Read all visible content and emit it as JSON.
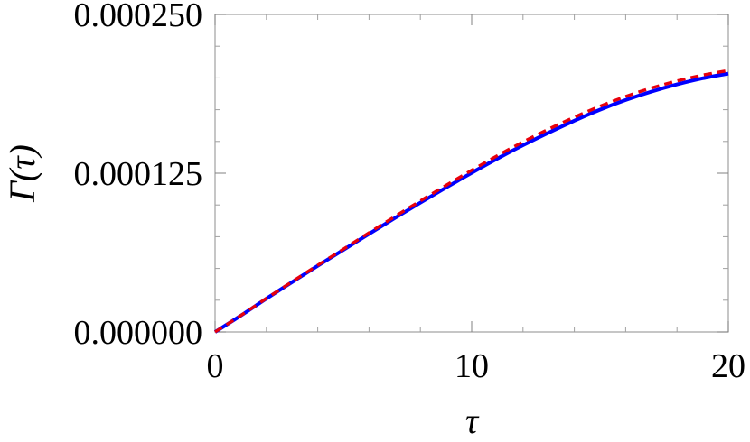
{
  "chart_data": {
    "type": "line",
    "xlabel": "τ",
    "ylabel": "Γ(τ)",
    "xlim": [
      0,
      20
    ],
    "ylim": [
      0,
      0.00025
    ],
    "x_ticks": [
      "0",
      "10",
      "20"
    ],
    "y_ticks": [
      "0.000000",
      "0.000125",
      "0.000250"
    ],
    "x_tick_values": [
      0,
      10,
      20
    ],
    "y_tick_values": [
      0,
      0.000125,
      0.00025
    ],
    "grid": false,
    "series": [
      {
        "color": "#0000ff",
        "style": "solid",
        "x": [
          0,
          1,
          2,
          3,
          4,
          5,
          6,
          7,
          8,
          9,
          10,
          11,
          12,
          13,
          14,
          15,
          16,
          17,
          18,
          19,
          20
        ],
        "y": [
          0,
          1.28e-05,
          2.62e-05,
          3.92e-05,
          5.21e-05,
          6.46e-05,
          7.72e-05,
          8.96e-05,
          0.0001018,
          0.0001137,
          0.0001253,
          0.0001365,
          0.000147,
          0.0001569,
          0.0001663,
          0.000175,
          0.0001826,
          0.0001892,
          0.0001949,
          0.0001997,
          0.0002034
        ]
      },
      {
        "color": "#e8000b",
        "style": "dashed",
        "x": [
          0,
          1,
          2,
          3,
          4,
          5,
          6,
          7,
          8,
          9,
          10,
          11,
          12,
          13,
          14,
          15,
          16,
          17,
          18,
          19,
          20
        ],
        "y": [
          0,
          1.29e-05,
          2.64e-05,
          3.95e-05,
          5.25e-05,
          6.52e-05,
          7.81e-05,
          9.08e-05,
          0.0001032,
          0.0001154,
          0.0001273,
          0.0001388,
          0.0001496,
          0.0001597,
          0.0001691,
          0.0001777,
          0.0001854,
          0.000192,
          0.0001976,
          0.0002022,
          0.0002058
        ]
      }
    ]
  }
}
